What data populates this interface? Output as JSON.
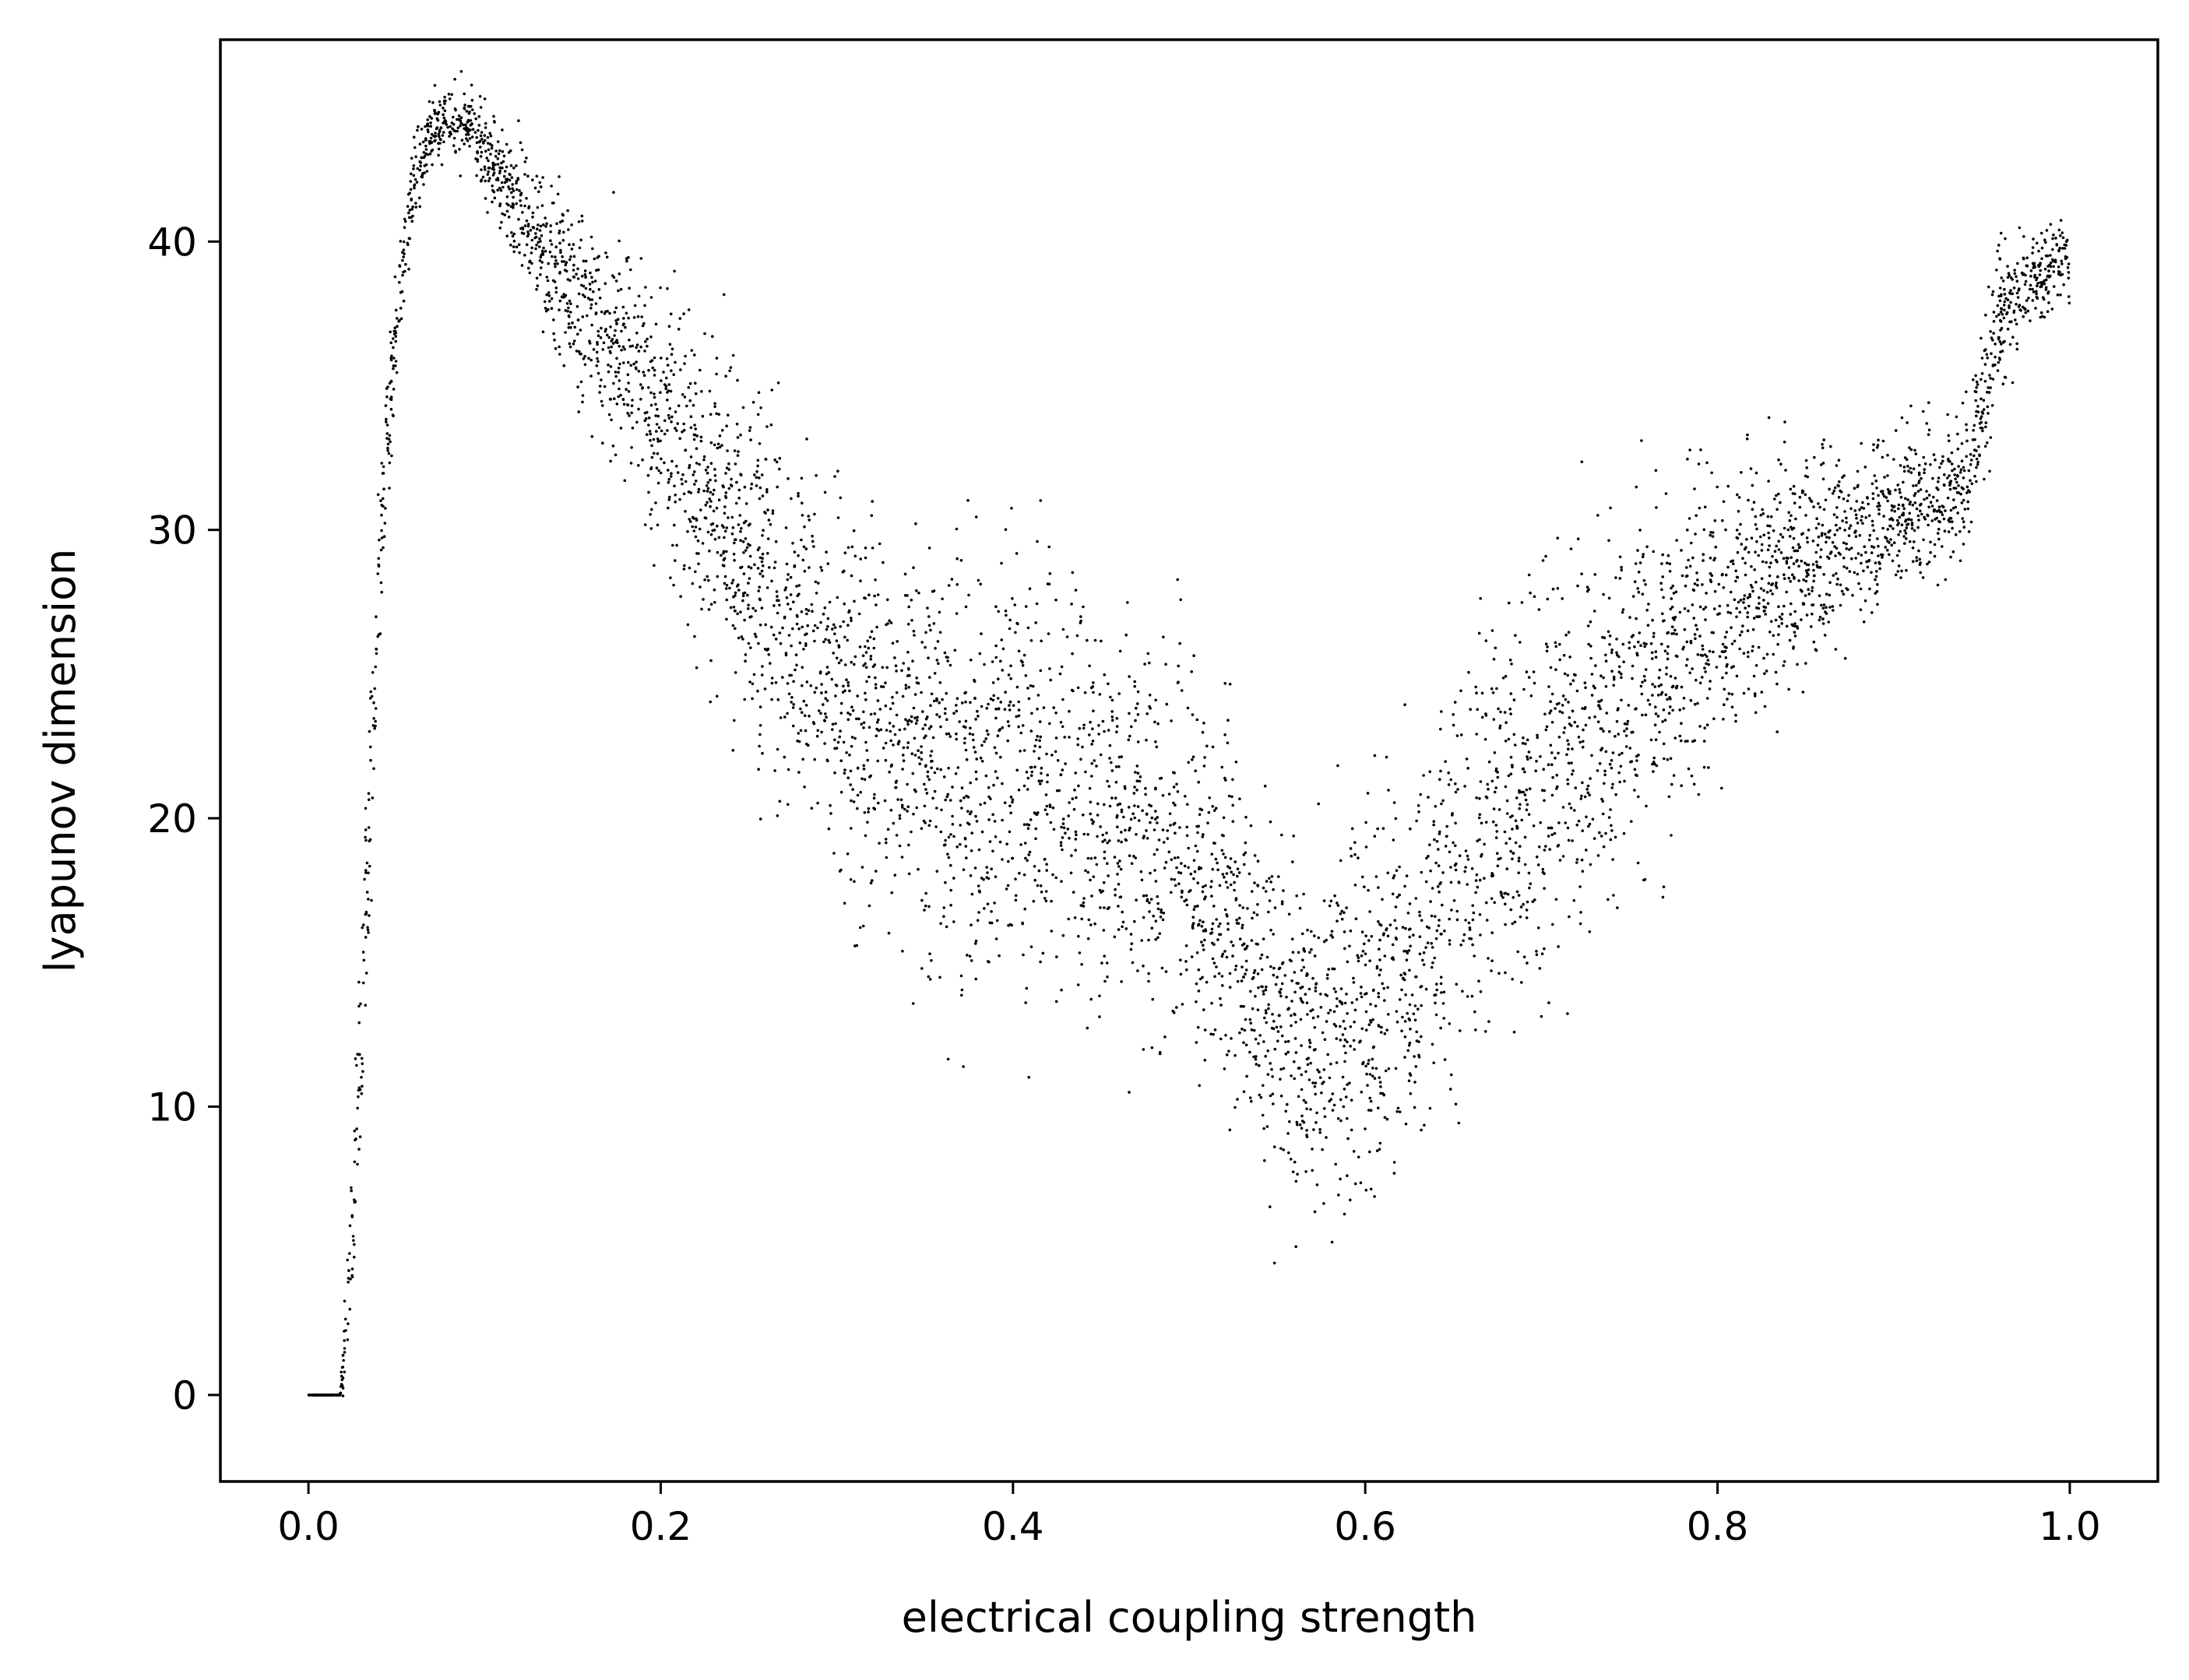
{
  "chart_data": {
    "type": "scatter",
    "title": "",
    "xlabel": "electrical coupling strength",
    "ylabel": "lyapunov dimension",
    "xlim": [
      -0.05,
      1.05
    ],
    "ylim": [
      -3,
      47
    ],
    "xticks": [
      0.0,
      0.2,
      0.4,
      0.6,
      0.8,
      1.0
    ],
    "xtick_labels": [
      "0.0",
      "0.2",
      "0.4",
      "0.6",
      "0.8",
      "1.0"
    ],
    "yticks": [
      0,
      10,
      20,
      30,
      40
    ],
    "ytick_labels": [
      "0",
      "10",
      "20",
      "30",
      "40"
    ],
    "grid": false,
    "legend": "none",
    "marker_color": "#000000",
    "series": [
      {
        "points_description": "dense scatter of ~6000 points; trend samples [x, y_mean, y_spread]",
        "trend": [
          [
            0.0,
            0.0,
            0.0
          ],
          [
            0.01,
            0.0,
            0.0
          ],
          [
            0.018,
            0.0,
            0.0
          ],
          [
            0.02,
            1.5,
            0.6
          ],
          [
            0.023,
            3.5,
            1.2
          ],
          [
            0.026,
            7.0,
            1.5
          ],
          [
            0.03,
            12.5,
            1.8
          ],
          [
            0.035,
            20.0,
            2.0
          ],
          [
            0.04,
            28.0,
            1.5
          ],
          [
            0.045,
            33.5,
            1.2
          ],
          [
            0.05,
            37.0,
            1.0
          ],
          [
            0.055,
            40.0,
            0.8
          ],
          [
            0.06,
            42.0,
            0.7
          ],
          [
            0.07,
            43.8,
            0.6
          ],
          [
            0.08,
            44.3,
            0.6
          ],
          [
            0.09,
            44.0,
            0.7
          ],
          [
            0.1,
            43.2,
            0.8
          ],
          [
            0.12,
            41.0,
            1.2
          ],
          [
            0.15,
            38.0,
            1.6
          ],
          [
            0.18,
            36.0,
            1.8
          ],
          [
            0.2,
            34.0,
            2.3
          ],
          [
            0.25,
            29.0,
            3.0
          ],
          [
            0.3,
            24.5,
            3.2
          ],
          [
            0.35,
            22.5,
            3.5
          ],
          [
            0.4,
            21.5,
            3.8
          ],
          [
            0.45,
            20.5,
            3.5
          ],
          [
            0.5,
            19.0,
            3.0
          ],
          [
            0.53,
            15.5,
            3.0
          ],
          [
            0.55,
            13.0,
            3.0
          ],
          [
            0.57,
            12.5,
            3.0
          ],
          [
            0.6,
            13.5,
            3.2
          ],
          [
            0.62,
            15.0,
            3.2
          ],
          [
            0.65,
            18.0,
            3.5
          ],
          [
            0.7,
            21.5,
            3.5
          ],
          [
            0.75,
            24.0,
            3.2
          ],
          [
            0.8,
            27.5,
            2.5
          ],
          [
            0.85,
            29.0,
            1.8
          ],
          [
            0.9,
            30.5,
            1.3
          ],
          [
            0.94,
            31.5,
            1.3
          ],
          [
            0.95,
            34.0,
            1.5
          ],
          [
            0.96,
            37.5,
            1.2
          ],
          [
            0.98,
            38.8,
            0.8
          ],
          [
            1.0,
            39.5,
            0.7
          ]
        ]
      }
    ]
  }
}
